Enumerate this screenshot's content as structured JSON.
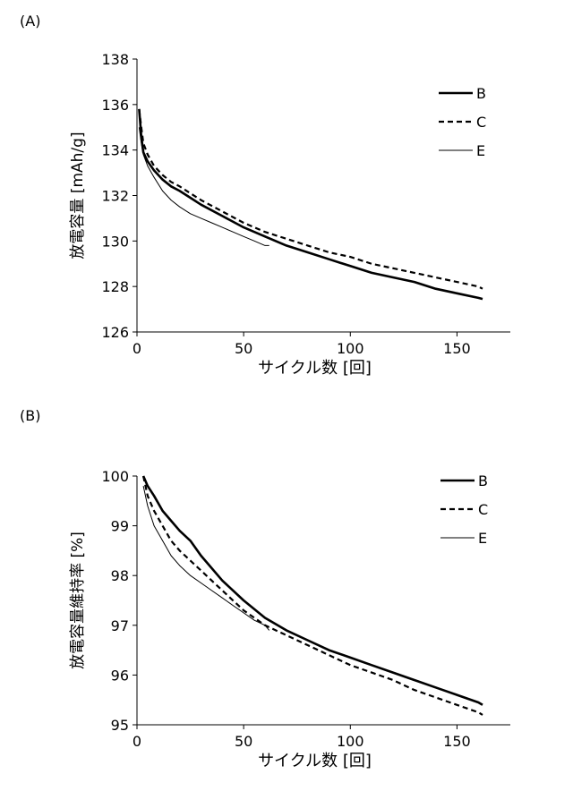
{
  "panels": [
    {
      "label": "(A)",
      "chart_data": {
        "type": "line",
        "title": "",
        "xlabel": "サイクル数 [回]",
        "ylabel": "放電容量 [mAh/g]",
        "xlim": [
          0,
          175
        ],
        "ylim": [
          126,
          138
        ],
        "xticks": [
          0,
          50,
          100,
          150
        ],
        "yticks": [
          126,
          128,
          130,
          132,
          134,
          136,
          138
        ],
        "grid": false,
        "legend_position": "top-right",
        "series": [
          {
            "name": "B",
            "style": "solid-thick",
            "x": [
              1,
              2,
              3,
              5,
              8,
              12,
              16,
              20,
              25,
              30,
              40,
              50,
              60,
              70,
              80,
              90,
              100,
              110,
              120,
              130,
              140,
              150,
              160,
              162
            ],
            "y": [
              135.8,
              134.6,
              133.9,
              133.5,
              133.1,
              132.7,
              132.4,
              132.2,
              131.9,
              131.6,
              131.1,
              130.6,
              130.2,
              129.8,
              129.5,
              129.2,
              128.9,
              128.6,
              128.4,
              128.2,
              127.9,
              127.7,
              127.5,
              127.45
            ]
          },
          {
            "name": "C",
            "style": "dashed-thick",
            "x": [
              1,
              2,
              3,
              5,
              8,
              12,
              16,
              20,
              25,
              30,
              40,
              50,
              60,
              70,
              80,
              90,
              100,
              110,
              120,
              130,
              140,
              150,
              160,
              162
            ],
            "y": [
              135.8,
              135.0,
              134.3,
              133.8,
              133.3,
              132.9,
              132.6,
              132.4,
              132.1,
              131.8,
              131.3,
              130.8,
              130.4,
              130.1,
              129.8,
              129.5,
              129.3,
              129.0,
              128.8,
              128.6,
              128.4,
              128.2,
              128.0,
              127.9
            ]
          },
          {
            "name": "E",
            "style": "solid-thin",
            "x": [
              1,
              2,
              3,
              5,
              8,
              12,
              16,
              20,
              25,
              30,
              35,
              40,
              45,
              50,
              55,
              60,
              62
            ],
            "y": [
              135.0,
              134.3,
              133.8,
              133.3,
              132.8,
              132.2,
              131.8,
              131.5,
              131.2,
              131.0,
              130.8,
              130.6,
              130.4,
              130.2,
              130.0,
              129.8,
              129.8
            ]
          }
        ]
      }
    },
    {
      "label": "(B)",
      "chart_data": {
        "type": "line",
        "title": "",
        "xlabel": "サイクル数 [回]",
        "ylabel": "放電容量維持率 [%]",
        "xlim": [
          0,
          175
        ],
        "ylim": [
          95,
          100
        ],
        "xticks": [
          0,
          50,
          100,
          150
        ],
        "yticks": [
          95,
          96,
          97,
          98,
          99,
          100
        ],
        "grid": false,
        "legend_position": "top-right",
        "series": [
          {
            "name": "B",
            "style": "solid-thick",
            "x": [
              3,
              5,
              8,
              12,
              16,
              20,
              25,
              30,
              40,
              50,
              60,
              70,
              80,
              90,
              100,
              110,
              120,
              130,
              140,
              150,
              160,
              162
            ],
            "y": [
              100.0,
              99.8,
              99.6,
              99.3,
              99.1,
              98.9,
              98.7,
              98.4,
              97.9,
              97.5,
              97.15,
              96.9,
              96.7,
              96.5,
              96.35,
              96.2,
              96.05,
              95.9,
              95.75,
              95.6,
              95.45,
              95.4
            ]
          },
          {
            "name": "C",
            "style": "dashed-thick",
            "x": [
              3,
              5,
              8,
              12,
              16,
              20,
              25,
              30,
              40,
              50,
              60,
              70,
              80,
              90,
              100,
              110,
              120,
              130,
              140,
              150,
              160,
              162
            ],
            "y": [
              100.0,
              99.6,
              99.3,
              99.0,
              98.7,
              98.5,
              98.3,
              98.1,
              97.7,
              97.3,
              97.0,
              96.8,
              96.6,
              96.4,
              96.2,
              96.05,
              95.9,
              95.7,
              95.55,
              95.4,
              95.25,
              95.2
            ]
          },
          {
            "name": "E",
            "style": "solid-thin",
            "x": [
              3,
              5,
              8,
              12,
              16,
              20,
              25,
              30,
              35,
              40,
              45,
              50,
              55,
              60,
              62
            ],
            "y": [
              99.8,
              99.4,
              99.0,
              98.7,
              98.4,
              98.2,
              98.0,
              97.85,
              97.7,
              97.55,
              97.4,
              97.25,
              97.1,
              97.0,
              96.9
            ]
          }
        ]
      }
    }
  ]
}
